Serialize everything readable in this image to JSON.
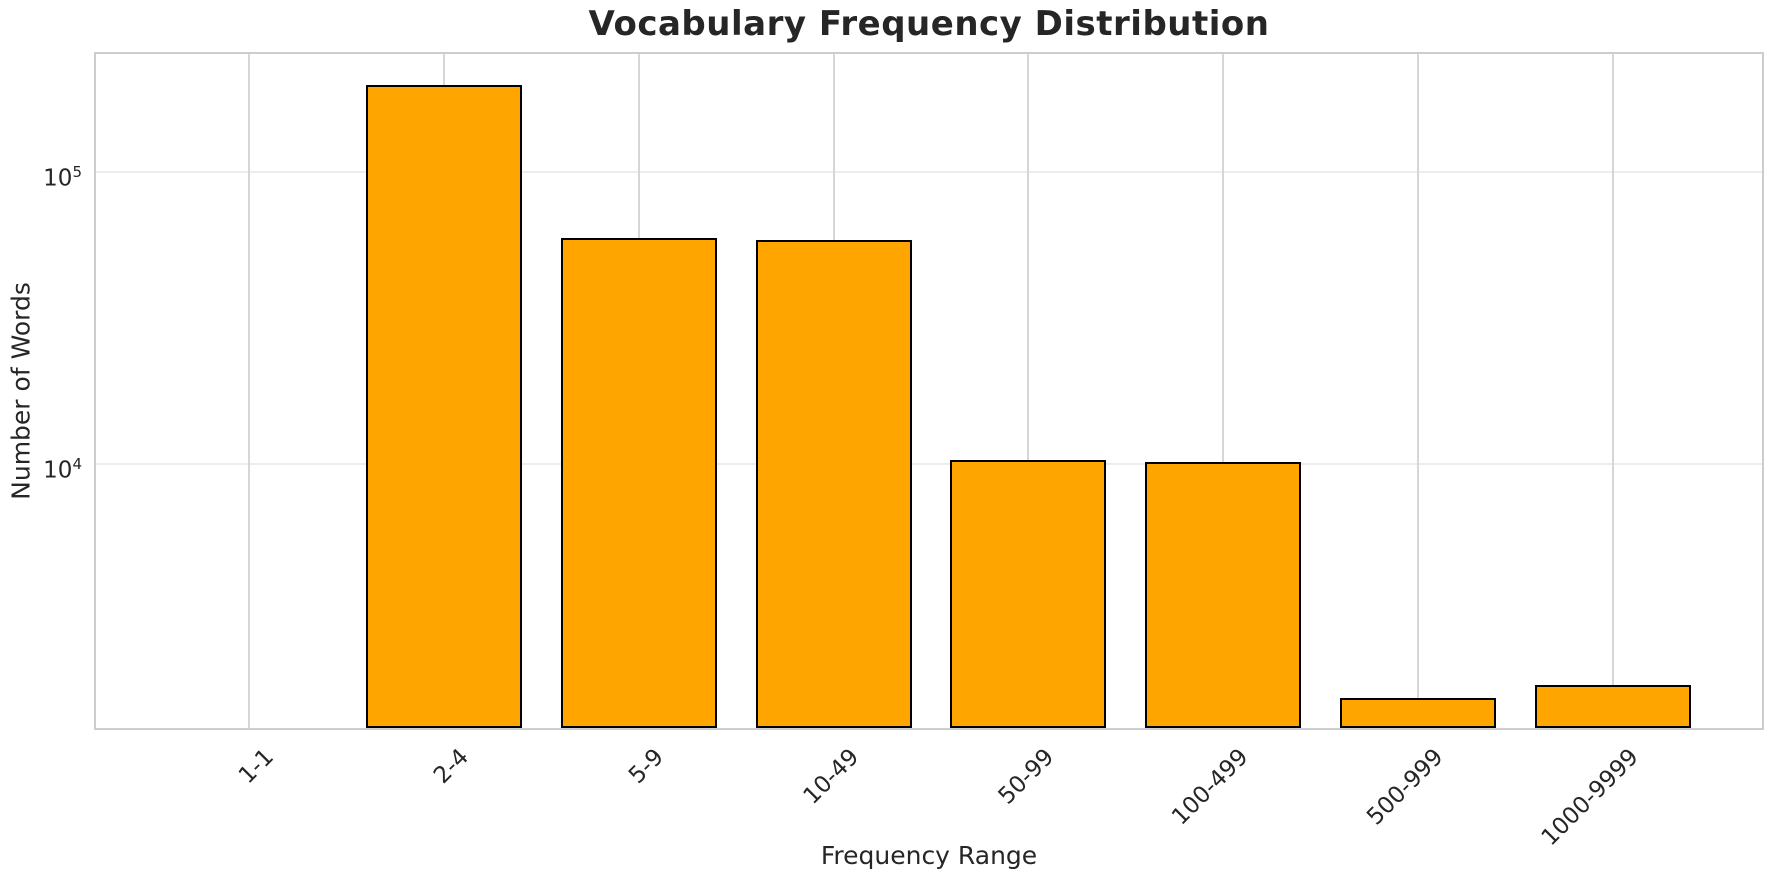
{
  "chart_data": {
    "type": "bar",
    "title": "Vocabulary Frequency Distribution",
    "xlabel": "Frequency Range",
    "ylabel": "Number of Words",
    "categories": [
      "1-1",
      "2-4",
      "5-9",
      "10-49",
      "50-99",
      "100-499",
      "500-999",
      "1000-9999"
    ],
    "values": [
      0,
      198000,
      59500,
      58500,
      10350,
      10150,
      1580,
      1750
    ],
    "yscale": "log",
    "ylim": [
      1250,
      253000
    ],
    "yticks": [
      {
        "value": 10000,
        "base": "10",
        "exp": "4"
      },
      {
        "value": 100000,
        "base": "10",
        "exp": "5"
      }
    ],
    "grid": true,
    "legend": "none",
    "bar_color": "#FFA500",
    "bar_edge_color": "#000000",
    "text_color": "#262626"
  }
}
